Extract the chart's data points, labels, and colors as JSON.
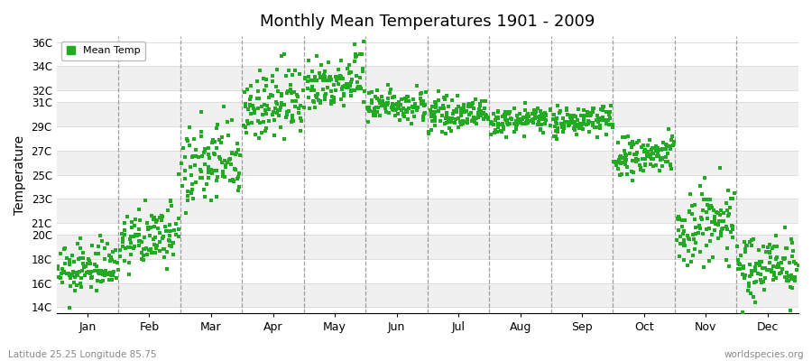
{
  "title": "Monthly Mean Temperatures 1901 - 2009",
  "ylabel": "Temperature",
  "months": [
    "Jan",
    "Feb",
    "Mar",
    "Apr",
    "May",
    "Jun",
    "Jul",
    "Aug",
    "Sep",
    "Oct",
    "Nov",
    "Dec"
  ],
  "ytick_labels": [
    "14C",
    "16C",
    "18C",
    "20C",
    "21C",
    "23C",
    "25C",
    "27C",
    "29C",
    "31C",
    "32C",
    "34C",
    "36C"
  ],
  "ytick_values": [
    14,
    16,
    18,
    20,
    21,
    23,
    25,
    27,
    29,
    31,
    32,
    34,
    36
  ],
  "ylim": [
    13.5,
    36.5
  ],
  "n_years": 109,
  "monthly_means": [
    17.2,
    19.8,
    25.8,
    30.8,
    32.8,
    30.8,
    30.0,
    29.5,
    29.5,
    26.5,
    20.8,
    17.5
  ],
  "monthly_stds": [
    1.0,
    1.2,
    1.8,
    1.5,
    1.2,
    0.7,
    0.6,
    0.5,
    0.6,
    0.9,
    1.8,
    1.3
  ],
  "monthly_trends": [
    0.008,
    0.01,
    0.012,
    0.008,
    0.006,
    0.004,
    0.003,
    0.003,
    0.004,
    0.006,
    0.01,
    0.008
  ],
  "dot_color": "#22aa22",
  "dot_size": 5,
  "legend_label": "Mean Temp",
  "subtitle_left": "Latitude 25.25 Longitude 85.75",
  "subtitle_right": "worldspecies.org",
  "bg_color": "#ffffff",
  "band_color_even": "#f0f0f0",
  "band_color_odd": "#ffffff",
  "vline_color": "#888888",
  "grid_color": "#dddddd"
}
